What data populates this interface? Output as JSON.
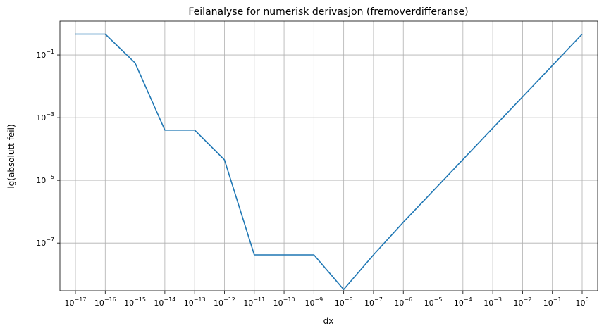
{
  "chart_data": {
    "type": "line",
    "title": "Feilanalyse for numerisk derivasjon (fremoverdifferanse)",
    "xlabel": "dx",
    "ylabel": "lg(absolutt feil)",
    "xscale": "log",
    "yscale": "log",
    "xlim": [
      1e-17,
      1
    ],
    "ylim": [
      3e-09,
      1.2
    ],
    "grid": true,
    "line_color": "#1f77b4",
    "x_ticks": [
      {
        "base": "10",
        "exp": "−17",
        "value": 1e-17
      },
      {
        "base": "10",
        "exp": "−16",
        "value": 1e-16
      },
      {
        "base": "10",
        "exp": "−15",
        "value": 1e-15
      },
      {
        "base": "10",
        "exp": "−14",
        "value": 1e-14
      },
      {
        "base": "10",
        "exp": "−13",
        "value": 1e-13
      },
      {
        "base": "10",
        "exp": "−12",
        "value": 1e-12
      },
      {
        "base": "10",
        "exp": "−11",
        "value": 1e-11
      },
      {
        "base": "10",
        "exp": "−10",
        "value": 1e-10
      },
      {
        "base": "10",
        "exp": "−9",
        "value": 1e-09
      },
      {
        "base": "10",
        "exp": "−8",
        "value": 1e-08
      },
      {
        "base": "10",
        "exp": "−7",
        "value": 1e-07
      },
      {
        "base": "10",
        "exp": "−6",
        "value": 1e-06
      },
      {
        "base": "10",
        "exp": "−5",
        "value": 1e-05
      },
      {
        "base": "10",
        "exp": "−4",
        "value": 0.0001
      },
      {
        "base": "10",
        "exp": "−3",
        "value": 0.001
      },
      {
        "base": "10",
        "exp": "−2",
        "value": 0.01
      },
      {
        "base": "10",
        "exp": "−1",
        "value": 0.1
      },
      {
        "base": "10",
        "exp": "0",
        "value": 1
      }
    ],
    "y_ticks": [
      {
        "base": "10",
        "exp": "−1",
        "value": 0.1
      },
      {
        "base": "10",
        "exp": "−3",
        "value": 0.001
      },
      {
        "base": "10",
        "exp": "−5",
        "value": 1e-05
      },
      {
        "base": "10",
        "exp": "−7",
        "value": 1e-07
      }
    ],
    "x": [
      1e-17,
      1e-16,
      1e-15,
      1e-14,
      1e-13,
      1e-12,
      1e-11,
      1e-10,
      1e-09,
      1e-08,
      1e-07,
      1e-06,
      1e-05,
      0.0001,
      0.001,
      0.01,
      0.1,
      1
    ],
    "y": [
      0.46,
      0.46,
      0.056,
      0.0004,
      0.0004,
      4.5e-05,
      4.2e-08,
      4.2e-08,
      4.2e-08,
      3.3e-09,
      4.2e-08,
      4.6e-07,
      4.6e-06,
      4.6e-05,
      0.00046,
      0.0046,
      0.046,
      0.46
    ]
  }
}
